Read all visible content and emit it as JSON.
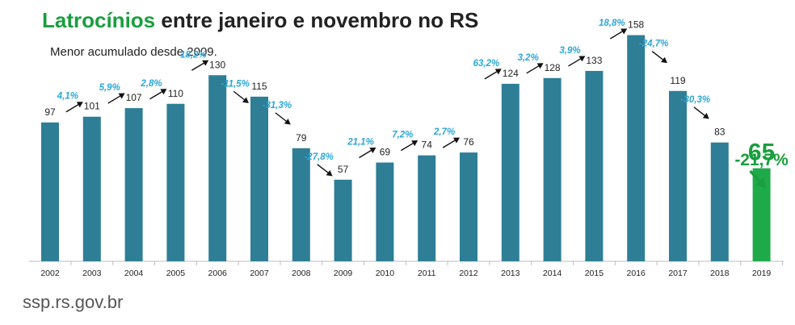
{
  "title_highlight": "Latrocínios",
  "title_rest": " entre janeiro e novembro no RS",
  "subtitle": "Menor acumulado desde 2009.",
  "footer": "ssp.rs.gov.br",
  "colors": {
    "bar": "#2e7e96",
    "highlight_bar": "#1faa4a",
    "pct": "#2ba6d6",
    "green": "#1a9e3e"
  },
  "chart_data": {
    "type": "bar",
    "title": "Latrocínios entre janeiro e novembro no RS",
    "categories": [
      "2002",
      "2003",
      "2004",
      "2005",
      "2006",
      "2007",
      "2008",
      "2009",
      "2010",
      "2011",
      "2012",
      "2013",
      "2014",
      "2015",
      "2016",
      "2017",
      "2018",
      "2019"
    ],
    "values": [
      97,
      101,
      107,
      110,
      130,
      115,
      79,
      57,
      69,
      74,
      76,
      124,
      128,
      133,
      158,
      119,
      83,
      65
    ],
    "changes": [
      "",
      "4,1%",
      "5,9%",
      "2,8%",
      "18,2%",
      "-11,5%",
      "-31,3%",
      "-27,8%",
      "21,1%",
      "7,2%",
      "2,7%",
      "63,2%",
      "3,2%",
      "3,9%",
      "18,8%",
      "-24,7%",
      "-30,3%",
      "-21,7%"
    ],
    "highlight_index": 17
  }
}
